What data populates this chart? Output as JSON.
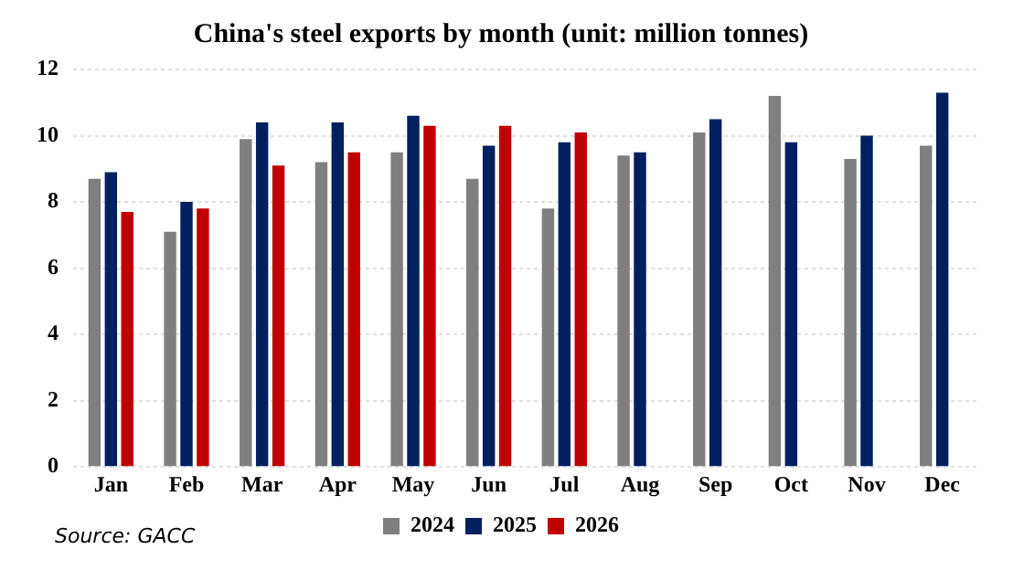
{
  "chart_data": {
    "type": "bar",
    "title": "China's steel exports by month (unit: million tonnes)",
    "categories": [
      "Jan",
      "Feb",
      "Mar",
      "Apr",
      "May",
      "Jun",
      "Jul",
      "Aug",
      "Sep",
      "Oct",
      "Nov",
      "Dec"
    ],
    "series": [
      {
        "name": "2024",
        "color": "#7f7f7f",
        "values": [
          8.7,
          7.1,
          9.9,
          9.2,
          9.5,
          8.7,
          7.8,
          9.4,
          10.1,
          11.2,
          9.3,
          9.7
        ]
      },
      {
        "name": "2025",
        "color": "#002060",
        "values": [
          8.9,
          8.0,
          10.4,
          10.4,
          10.6,
          9.7,
          9.8,
          9.5,
          10.5,
          9.8,
          10.0,
          11.3
        ]
      },
      {
        "name": "2026",
        "color": "#c00000",
        "values": [
          7.7,
          7.8,
          9.1,
          9.5,
          10.3,
          10.3,
          10.1,
          null,
          null,
          null,
          null,
          null
        ]
      }
    ],
    "ylim": [
      0,
      12
    ],
    "yticks": [
      0,
      2,
      4,
      6,
      8,
      10,
      12
    ],
    "grid": "y",
    "legend": "bottom",
    "annotations": [
      "Source: GACC"
    ]
  }
}
